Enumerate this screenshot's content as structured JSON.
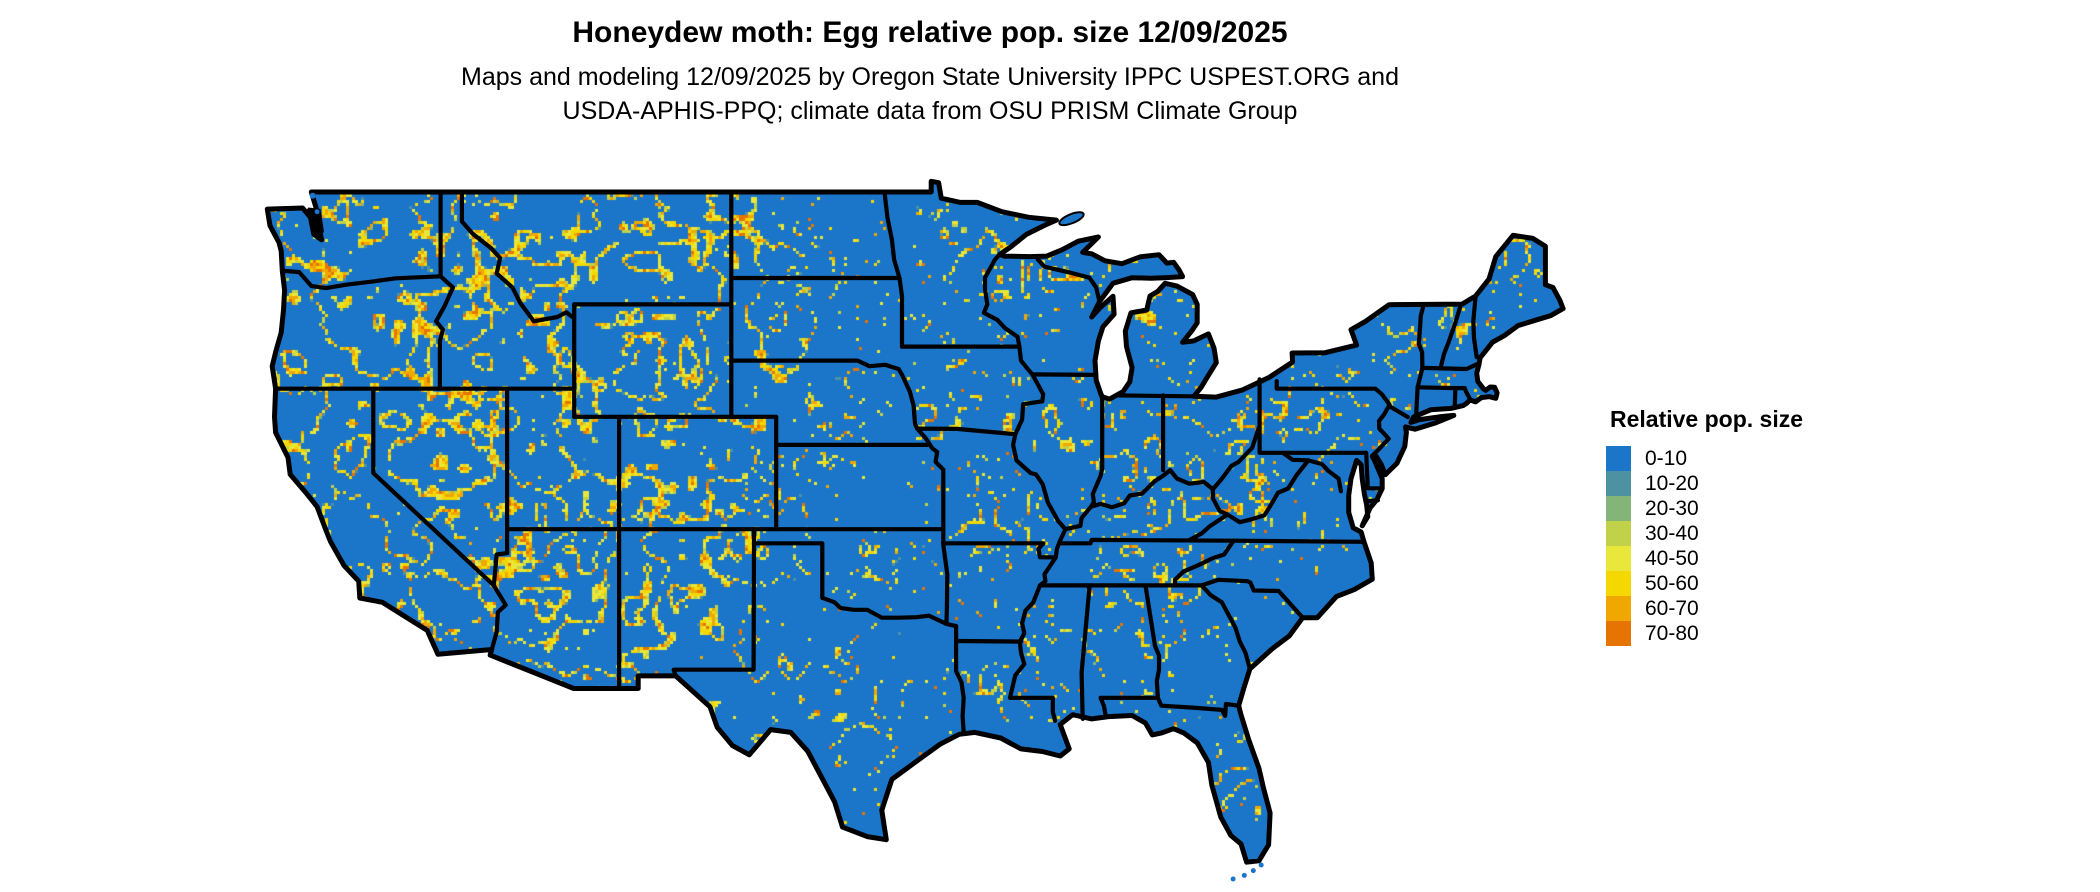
{
  "header": {
    "title": "Honeydew moth: Egg relative pop. size 12/09/2025",
    "subtitle_line1": "Maps and modeling 12/09/2025 by Oregon State University IPPC USPEST.ORG and",
    "subtitle_line2": "USDA-APHIS-PPQ; climate data from OSU PRISM Climate Group"
  },
  "map": {
    "region": "Contiguous United States",
    "land_base_color": "#1b75c8",
    "border_color": "#000000",
    "water_color": "#ffffff"
  },
  "legend": {
    "title": "Relative pop. size",
    "entries": [
      {
        "label": "0-10",
        "color": "#1b75c8"
      },
      {
        "label": "10-20",
        "color": "#4d92a3"
      },
      {
        "label": "20-30",
        "color": "#84b578"
      },
      {
        "label": "30-40",
        "color": "#c1d14a"
      },
      {
        "label": "40-50",
        "color": "#e9e739"
      },
      {
        "label": "50-60",
        "color": "#f5d800"
      },
      {
        "label": "60-70",
        "color": "#f0a800"
      },
      {
        "label": "70-80",
        "color": "#e67403"
      }
    ]
  }
}
